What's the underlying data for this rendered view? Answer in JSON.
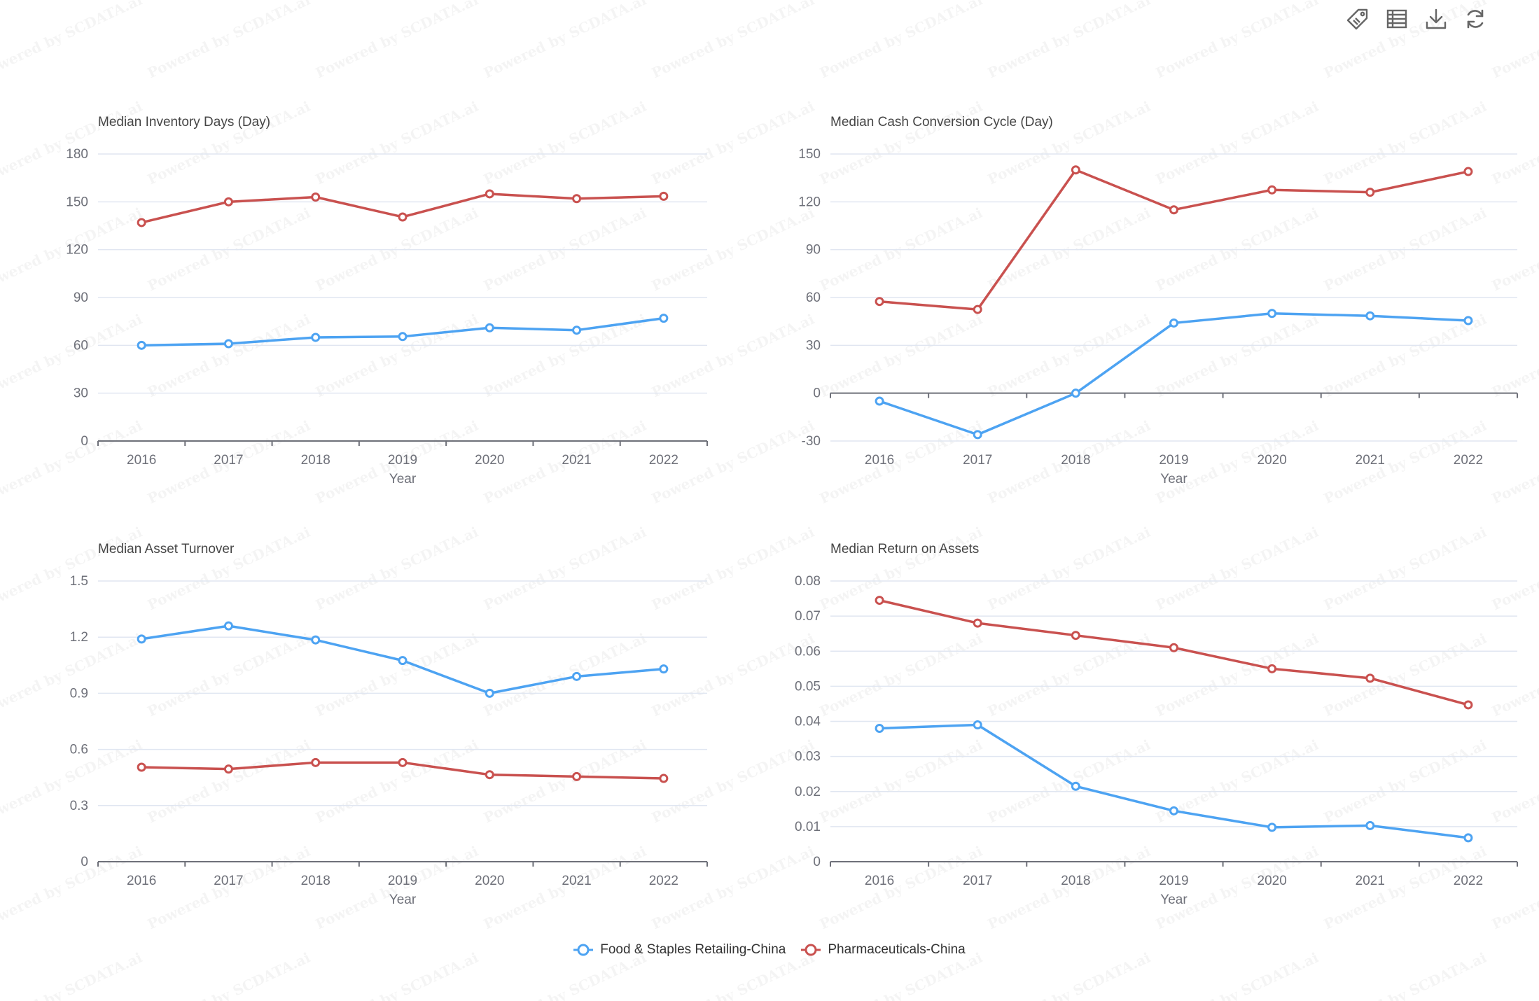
{
  "toolbar": {
    "buttons": [
      {
        "name": "tag-button",
        "icon": "tag-icon"
      },
      {
        "name": "data-view-button",
        "icon": "table-icon"
      },
      {
        "name": "download-button",
        "icon": "download-icon"
      },
      {
        "name": "refresh-button",
        "icon": "refresh-icon"
      }
    ]
  },
  "watermark": "Powered by SCDATA.ai",
  "colors": {
    "series_food": "#4da3f2",
    "series_pharma": "#c9514f",
    "axis": "#6e7079",
    "grid": "#e0e6f1",
    "text": "#333333"
  },
  "legend": {
    "items": [
      {
        "label": "Food & Staples Retailing-China",
        "color": "#4da3f2"
      },
      {
        "label": "Pharmaceuticals-China",
        "color": "#c9514f"
      }
    ]
  },
  "chart_data": [
    {
      "type": "line",
      "title": "Median Inventory Days (Day)",
      "xlabel": "Year",
      "ylabel": "",
      "categories": [
        "2016",
        "2017",
        "2018",
        "2019",
        "2020",
        "2021",
        "2022"
      ],
      "ylim": [
        0,
        180
      ],
      "yticks": [
        "0",
        "30",
        "60",
        "90",
        "120",
        "150",
        "180"
      ],
      "grid": true,
      "series": [
        {
          "name": "Food & Staples Retailing-China",
          "values": [
            60,
            61,
            65,
            65.5,
            71,
            69.5,
            77
          ]
        },
        {
          "name": "Pharmaceuticals-China",
          "values": [
            137,
            150,
            153,
            140.5,
            155,
            152,
            153.5
          ]
        }
      ]
    },
    {
      "type": "line",
      "title": "Median Cash Conversion Cycle (Day)",
      "xlabel": "Year",
      "ylabel": "",
      "categories": [
        "2016",
        "2017",
        "2018",
        "2019",
        "2020",
        "2021",
        "2022"
      ],
      "ylim": [
        -30,
        150
      ],
      "yticks": [
        "-30",
        "0",
        "30",
        "60",
        "90",
        "120",
        "150"
      ],
      "grid": true,
      "series": [
        {
          "name": "Food & Staples Retailing-China",
          "values": [
            -5,
            -26,
            0,
            44,
            50,
            48.5,
            45.5
          ]
        },
        {
          "name": "Pharmaceuticals-China",
          "values": [
            57.5,
            52.5,
            140,
            115,
            127.5,
            126,
            139
          ]
        }
      ]
    },
    {
      "type": "line",
      "title": "Median Asset Turnover",
      "xlabel": "Year",
      "ylabel": "",
      "categories": [
        "2016",
        "2017",
        "2018",
        "2019",
        "2020",
        "2021",
        "2022"
      ],
      "ylim": [
        0,
        1.5
      ],
      "yticks": [
        "0",
        "0.3",
        "0.6",
        "0.9",
        "1.2",
        "1.5"
      ],
      "grid": true,
      "series": [
        {
          "name": "Food & Staples Retailing-China",
          "values": [
            1.19,
            1.26,
            1.185,
            1.075,
            0.9,
            0.99,
            1.03
          ]
        },
        {
          "name": "Pharmaceuticals-China",
          "values": [
            0.505,
            0.495,
            0.53,
            0.53,
            0.465,
            0.455,
            0.445
          ]
        }
      ]
    },
    {
      "type": "line",
      "title": "Median Return on Assets",
      "xlabel": "Year",
      "ylabel": "",
      "categories": [
        "2016",
        "2017",
        "2018",
        "2019",
        "2020",
        "2021",
        "2022"
      ],
      "ylim": [
        0,
        0.08
      ],
      "yticks": [
        "0",
        "0.01",
        "0.02",
        "0.03",
        "0.04",
        "0.05",
        "0.06",
        "0.07",
        "0.08"
      ],
      "grid": true,
      "series": [
        {
          "name": "Food & Staples Retailing-China",
          "values": [
            0.038,
            0.039,
            0.0215,
            0.0145,
            0.0098,
            0.0103,
            0.0068
          ]
        },
        {
          "name": "Pharmaceuticals-China",
          "values": [
            0.0745,
            0.068,
            0.0645,
            0.061,
            0.055,
            0.0523,
            0.0447
          ]
        }
      ]
    }
  ]
}
